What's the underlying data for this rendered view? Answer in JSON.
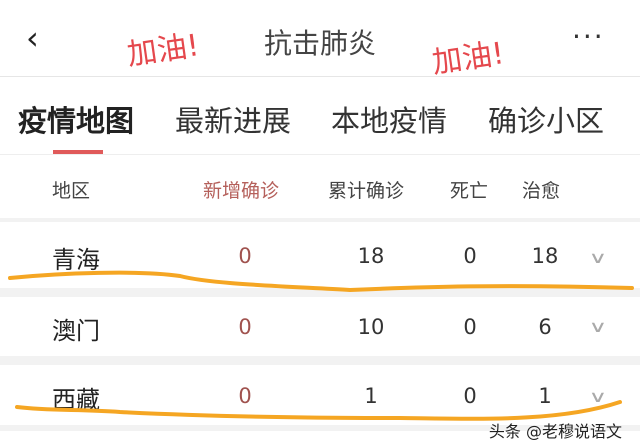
{
  "header": {
    "back_icon": "chevron-left-icon",
    "title": "抗击肺炎",
    "more_icon": "more-dots-icon",
    "more_label": "···"
  },
  "annotations": {
    "cheer_left": "加油!",
    "cheer_right": "加油!",
    "underline_color": "#f5a623"
  },
  "tabs": [
    {
      "label": "疫情地图",
      "active": true
    },
    {
      "label": "最新进展"
    },
    {
      "label": "本地疫情"
    },
    {
      "label": "确诊小区"
    }
  ],
  "accent_color": "#e05a5a",
  "table": {
    "columns": [
      "地区",
      "新增确诊",
      "累计确诊",
      "死亡",
      "治愈"
    ],
    "rows": [
      {
        "region": "青海",
        "new": "0",
        "total": "18",
        "deaths": "0",
        "cured": "18"
      },
      {
        "region": "澳门",
        "new": "0",
        "total": "10",
        "deaths": "0",
        "cured": "6"
      },
      {
        "region": "西藏",
        "new": "0",
        "total": "1",
        "deaths": "0",
        "cured": "1"
      }
    ],
    "expand_icon": "chevron-down-icon",
    "expand_glyph": "∨"
  },
  "watermark": "头条 @老穆说语文"
}
